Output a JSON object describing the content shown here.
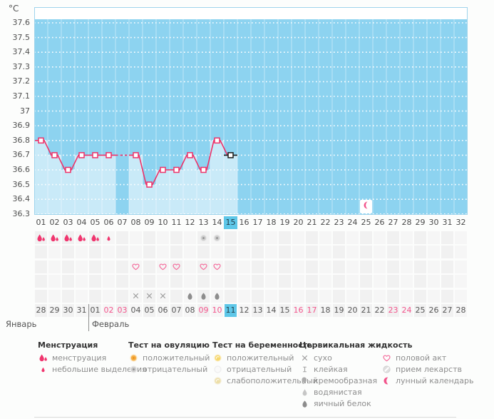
{
  "colors": {
    "chart_bg": "#8dd3f0",
    "chart_fill": "#c9eaf8",
    "chart_border": "#9fd4ec",
    "line": "#ee3168",
    "current_marker": "#1a1a1a",
    "highlight": "#5ec7e8",
    "weekend_text": "#f2558c",
    "drop": "#f0356e",
    "heart": "#f46a9a",
    "moon": "#f2548b",
    "negative_gray": "#9a9a9a"
  },
  "chart_data": {
    "type": "line",
    "ylabel": "°C",
    "ylim": [
      36.3,
      37.6
    ],
    "yticks": [
      "37.6",
      "37.5",
      "37.4",
      "37.3",
      "37.2",
      "37.1",
      "37",
      "36.9",
      "36.8",
      "36.7",
      "36.6",
      "36.5",
      "36.4",
      "36.3"
    ],
    "grid": "dotted-white-horizontal",
    "days": [
      "01",
      "02",
      "03",
      "04",
      "05",
      "06",
      "07",
      "08",
      "09",
      "10",
      "11",
      "12",
      "13",
      "14",
      "15",
      "16",
      "17",
      "18",
      "19",
      "20",
      "21",
      "22",
      "23",
      "24",
      "25",
      "26",
      "27",
      "28",
      "29",
      "30",
      "31",
      "32"
    ],
    "series": [
      {
        "name": "basal-temperature",
        "values": [
          36.8,
          36.7,
          36.6,
          36.7,
          36.7,
          36.7,
          null,
          36.7,
          36.5,
          36.6,
          36.6,
          36.7,
          36.6,
          36.8,
          36.7
        ]
      }
    ],
    "missing_day": 7,
    "current_day": 15,
    "highlighted_day_label": "15",
    "lunar_day": 25
  },
  "symbol_rows": [
    {
      "name": "row-1",
      "cells": [
        {
          "day": 1,
          "icon": "menstruation"
        },
        {
          "day": 2,
          "icon": "menstruation"
        },
        {
          "day": 3,
          "icon": "menstruation"
        },
        {
          "day": 4,
          "icon": "menstruation"
        },
        {
          "day": 5,
          "icon": "menstruation"
        },
        {
          "day": 6,
          "icon": "spotting"
        },
        {
          "day": 13,
          "icon": "ovulation-negative"
        },
        {
          "day": 14,
          "icon": "ovulation-negative"
        }
      ]
    },
    {
      "name": "row-2",
      "cells": []
    },
    {
      "name": "row-3",
      "cells": [
        {
          "day": 8,
          "icon": "intercourse"
        },
        {
          "day": 10,
          "icon": "intercourse"
        },
        {
          "day": 11,
          "icon": "intercourse"
        },
        {
          "day": 13,
          "icon": "intercourse"
        },
        {
          "day": 14,
          "icon": "intercourse"
        }
      ]
    },
    {
      "name": "row-4",
      "cells": []
    },
    {
      "name": "row-5",
      "cells": [
        {
          "day": 8,
          "icon": "dry"
        },
        {
          "day": 9,
          "icon": "dry"
        },
        {
          "day": 10,
          "icon": "dry"
        },
        {
          "day": 12,
          "icon": "egg-white"
        },
        {
          "day": 13,
          "icon": "egg-white"
        },
        {
          "day": 14,
          "icon": "egg-white"
        }
      ]
    }
  ],
  "calendar": {
    "dates": [
      {
        "label": "28"
      },
      {
        "label": "29"
      },
      {
        "label": "30"
      },
      {
        "label": "31"
      },
      {
        "label": "01"
      },
      {
        "label": "02",
        "weekend": true
      },
      {
        "label": "03",
        "weekend": true
      },
      {
        "label": "04"
      },
      {
        "label": "05"
      },
      {
        "label": "06"
      },
      {
        "label": "07"
      },
      {
        "label": "08"
      },
      {
        "label": "09",
        "weekend": true
      },
      {
        "label": "10",
        "weekend": true
      },
      {
        "label": "11",
        "today": true
      },
      {
        "label": "12"
      },
      {
        "label": "13"
      },
      {
        "label": "14"
      },
      {
        "label": "15"
      },
      {
        "label": "16",
        "weekend": true
      },
      {
        "label": "17",
        "weekend": true
      },
      {
        "label": "18"
      },
      {
        "label": "19"
      },
      {
        "label": "20"
      },
      {
        "label": "21"
      },
      {
        "label": "22"
      },
      {
        "label": "23",
        "weekend": true
      },
      {
        "label": "24",
        "weekend": true
      },
      {
        "label": "25"
      },
      {
        "label": "26"
      },
      {
        "label": "27"
      },
      {
        "label": "28"
      }
    ],
    "months": [
      {
        "label": "Январь",
        "from": 1,
        "to": 4
      },
      {
        "label": "Февраль",
        "from": 5,
        "to": 32
      }
    ]
  },
  "legend": {
    "columns": [
      {
        "header": "Менструация",
        "items": [
          {
            "icon": "menstruation",
            "label": "менструация"
          },
          {
            "icon": "spotting",
            "label": "небольшие выделения"
          }
        ]
      },
      {
        "header": "Тест на овуляцию",
        "items": [
          {
            "icon": "ovulation-positive",
            "label": "положительный"
          },
          {
            "icon": "ovulation-negative",
            "label": "отрицательный"
          }
        ]
      },
      {
        "header": "Тест на беременность",
        "items": [
          {
            "icon": "pregnancy-positive",
            "label": "положительный"
          },
          {
            "icon": "pregnancy-negative",
            "label": "отрицательный"
          },
          {
            "icon": "pregnancy-weak-positive",
            "label": "слабоположительный"
          }
        ]
      },
      {
        "header": "Цервикальная жидкость",
        "items": [
          {
            "icon": "dry",
            "label": "сухо"
          },
          {
            "icon": "sticky",
            "label": "клейкая"
          },
          {
            "icon": "creamy",
            "label": "кремообразная"
          },
          {
            "icon": "watery",
            "label": "водянистая"
          },
          {
            "icon": "egg-white",
            "label": "яичный белок"
          }
        ]
      },
      {
        "header": "",
        "items": [
          {
            "icon": "intercourse",
            "label": "половой акт"
          },
          {
            "icon": "medication",
            "label": "прием лекарств"
          },
          {
            "icon": "lunar",
            "label": "лунный календарь"
          }
        ]
      }
    ]
  }
}
